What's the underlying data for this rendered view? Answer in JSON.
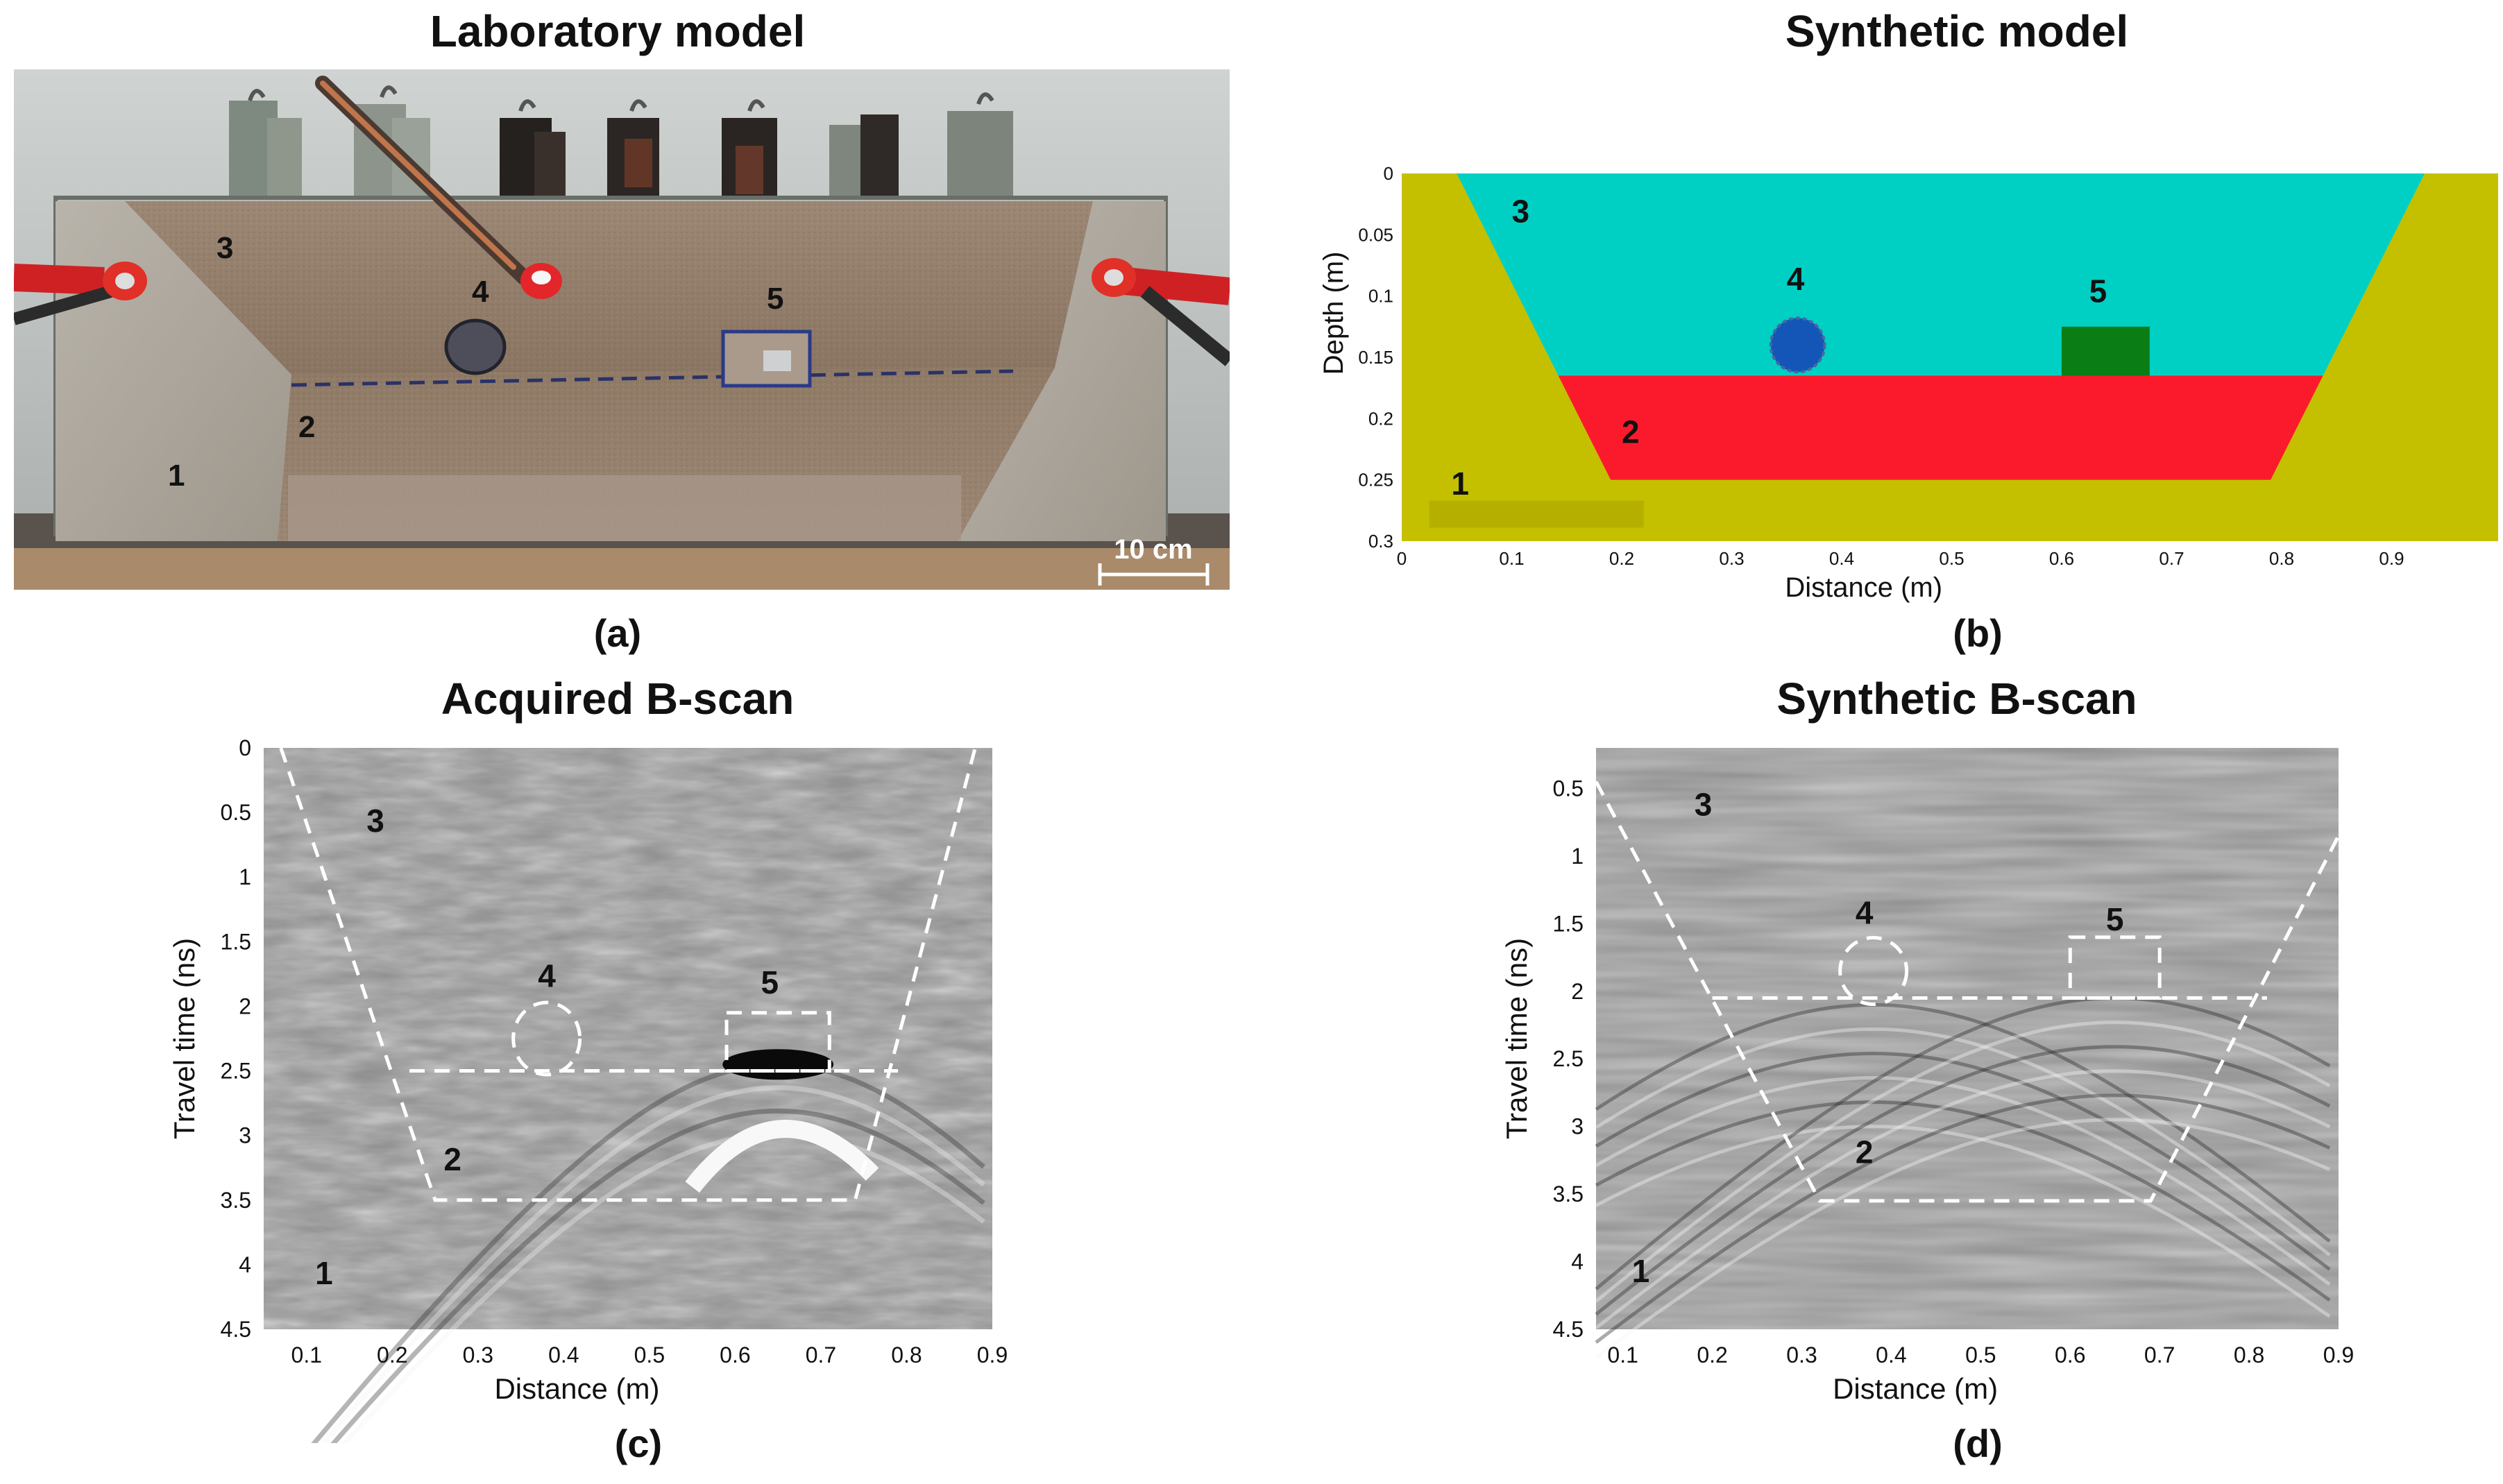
{
  "panels": {
    "a": {
      "title": "Laboratory model",
      "letter": "(a)",
      "scale_bar": "10 cm",
      "labels": [
        "1",
        "2",
        "3",
        "4",
        "5"
      ]
    },
    "b": {
      "title": "Synthetic model",
      "letter": "(b)",
      "xlabel": "Distance (m)",
      "ylabel": "Depth (m)",
      "xticks": [
        "0",
        "0.1",
        "0.2",
        "0.3",
        "0.4",
        "0.5",
        "0.6",
        "0.7",
        "0.8",
        "0.9"
      ],
      "yticks": [
        "0",
        "0.05",
        "0.1",
        "0.15",
        "0.2",
        "0.25",
        "0.3"
      ],
      "labels": [
        "1",
        "2",
        "3",
        "4",
        "5"
      ],
      "colors": {
        "soil": "#c4c000",
        "layer3": "#00d0c4",
        "layer2": "#fb1a2c",
        "pipe": "#1455b8",
        "box": "#0a7d14"
      }
    },
    "c": {
      "title": "Acquired B-scan",
      "letter": "(c)",
      "xlabel": "Distance (m)",
      "ylabel": "Travel time (ns)",
      "xticks": [
        "0.1",
        "0.2",
        "0.3",
        "0.4",
        "0.5",
        "0.6",
        "0.7",
        "0.8",
        "0.9"
      ],
      "yticks": [
        "0",
        "0.5",
        "1",
        "1.5",
        "2",
        "2.5",
        "3",
        "3.5",
        "4",
        "4.5"
      ],
      "labels": [
        "1",
        "2",
        "3",
        "4",
        "5"
      ]
    },
    "d": {
      "title": "Synthetic B-scan",
      "letter": "(d)",
      "xlabel": "Distance (m)",
      "ylabel": "Travel time (ns)",
      "xticks": [
        "0.1",
        "0.2",
        "0.3",
        "0.4",
        "0.5",
        "0.6",
        "0.7",
        "0.8",
        "0.9"
      ],
      "yticks": [
        "0.5",
        "1",
        "1.5",
        "2",
        "2.5",
        "3",
        "3.5",
        "4",
        "4.5"
      ],
      "labels": [
        "1",
        "2",
        "3",
        "4",
        "5"
      ]
    }
  },
  "chart_data": [
    {
      "type": "diagram",
      "panel": "b",
      "xlim": [
        0,
        1
      ],
      "ylim": [
        0,
        0.3
      ],
      "trench_top_x": [
        0.05,
        0.93
      ],
      "trench_bottom_x": [
        0.19,
        0.79
      ],
      "interface_depth": 0.165,
      "trench_depth": 0.25,
      "pipe": {
        "x": 0.36,
        "depth": 0.14,
        "radius": 0.022
      },
      "box": {
        "x": [
          0.6,
          0.68
        ],
        "depth": [
          0.125,
          0.165
        ]
      }
    },
    {
      "type": "heatmap",
      "panel": "c",
      "xlim": [
        0.05,
        0.9
      ],
      "ylim": [
        0,
        4.5
      ],
      "interface_time": 2.5,
      "bottom_time": 3.5,
      "hyperbola_apex": {
        "x": 0.65,
        "t": 2.45
      }
    },
    {
      "type": "heatmap",
      "panel": "d",
      "xlim": [
        0.07,
        0.9
      ],
      "ylim": [
        0.2,
        4.5
      ],
      "interface_time": 2.05,
      "bottom_time": 3.55,
      "hyperbola_apex": [
        {
          "x": 0.38,
          "t": 2.1
        },
        {
          "x": 0.65,
          "t": 2.05
        }
      ]
    }
  ]
}
